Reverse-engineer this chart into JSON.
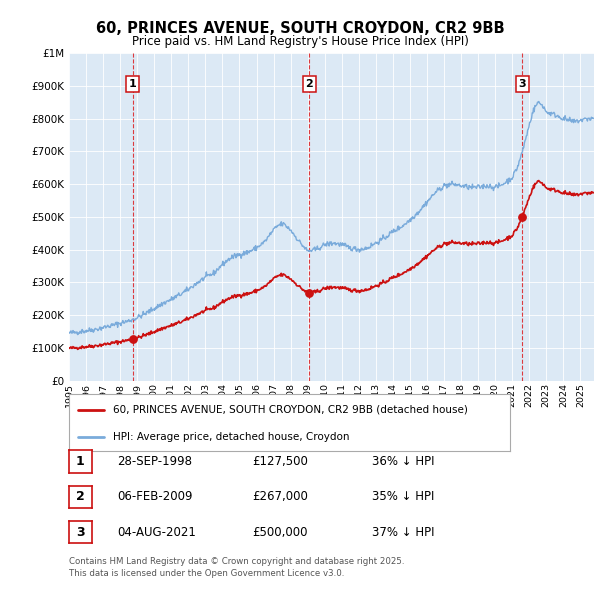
{
  "title": "60, PRINCES AVENUE, SOUTH CROYDON, CR2 9BB",
  "subtitle": "Price paid vs. HM Land Registry's House Price Index (HPI)",
  "hpi_color": "#7aabdb",
  "price_color": "#cc1111",
  "plot_bg_color": "#dce9f5",
  "ylim": [
    0,
    1000000
  ],
  "yticks": [
    0,
    100000,
    200000,
    300000,
    400000,
    500000,
    600000,
    700000,
    800000,
    900000,
    1000000
  ],
  "ytick_labels": [
    "£0",
    "£100K",
    "£200K",
    "£300K",
    "£400K",
    "£500K",
    "£600K",
    "£700K",
    "£800K",
    "£900K",
    "£1M"
  ],
  "xlim_start": 1995.0,
  "xlim_end": 2025.8,
  "sale_dates": [
    1998.74,
    2009.09,
    2021.59
  ],
  "sale_prices": [
    127500,
    267000,
    500000
  ],
  "sale_labels": [
    "1",
    "2",
    "3"
  ],
  "sale_date_strs": [
    "28-SEP-1998",
    "06-FEB-2009",
    "04-AUG-2021"
  ],
  "sale_price_strs": [
    "£127,500",
    "£267,000",
    "£500,000"
  ],
  "sale_hpi_strs": [
    "36% ↓ HPI",
    "35% ↓ HPI",
    "37% ↓ HPI"
  ],
  "legend_line1": "60, PRINCES AVENUE, SOUTH CROYDON, CR2 9BB (detached house)",
  "legend_line2": "HPI: Average price, detached house, Croydon",
  "footer1": "Contains HM Land Registry data © Crown copyright and database right 2025.",
  "footer2": "This data is licensed under the Open Government Licence v3.0."
}
